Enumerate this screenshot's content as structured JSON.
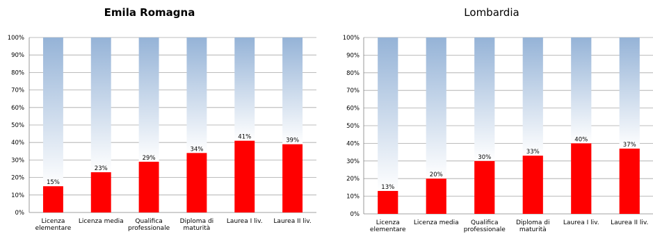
{
  "chart_data": [
    {
      "type": "bar",
      "stacked_to_100": true,
      "title": "Emila Romagna",
      "categories": [
        [
          "Licenza",
          "elementare"
        ],
        [
          "Licenza media"
        ],
        [
          "Qualifica",
          "professionale"
        ],
        [
          "Diploma di",
          "maturità"
        ],
        [
          "Laurea I liv."
        ],
        [
          "Laurea II liv."
        ]
      ],
      "values": [
        15,
        23,
        29,
        34,
        41,
        39
      ],
      "value_labels": [
        "15%",
        "23%",
        "29%",
        "34%",
        "41%",
        "39%"
      ],
      "yticks": [
        "0%",
        "10%",
        "20%",
        "30%",
        "40%",
        "50%",
        "60%",
        "70%",
        "80%",
        "90%",
        "100%"
      ],
      "ylim": [
        0,
        100
      ],
      "grid": true,
      "colors": {
        "value": "#ff0000",
        "remainder_top": "#95b3d7",
        "remainder_bottom": "#ffffff"
      }
    },
    {
      "type": "bar",
      "stacked_to_100": true,
      "title": "Lombardia",
      "categories": [
        [
          "Licenza",
          "elementare"
        ],
        [
          "Licenza media"
        ],
        [
          "Qualifica",
          "professionale"
        ],
        [
          "Diploma di",
          "maturità"
        ],
        [
          "Laurea I liv."
        ],
        [
          "Laurea II liv."
        ]
      ],
      "values": [
        13,
        20,
        30,
        33,
        40,
        37
      ],
      "value_labels": [
        "13%",
        "20%",
        "30%",
        "33%",
        "40%",
        "37%"
      ],
      "yticks": [
        "0%",
        "10%",
        "20%",
        "30%",
        "40%",
        "50%",
        "60%",
        "70%",
        "80%",
        "90%",
        "100%"
      ],
      "ylim": [
        0,
        100
      ],
      "grid": true,
      "colors": {
        "value": "#ff0000",
        "remainder_top": "#95b3d7",
        "remainder_bottom": "#ffffff"
      }
    }
  ]
}
